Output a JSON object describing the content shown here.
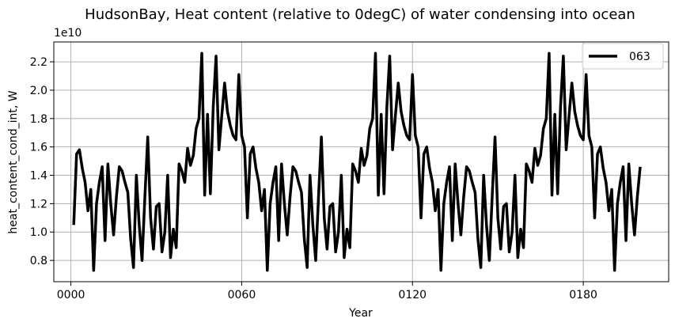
{
  "chart_data": {
    "type": "line",
    "title": "HudsonBay, Heat content (relative to 0degC) of water condensing into ocean",
    "xlabel": "Year",
    "ylabel": "heat_content_cond_int, W",
    "y_offset_label": "1e10",
    "y_scale_factor": 10000000000.0,
    "xlim": [
      -6,
      210
    ],
    "ylim": [
      6500000000.0,
      23400000000.0
    ],
    "x_ticks": [
      0,
      60,
      120,
      180
    ],
    "x_tick_labels": [
      "0000",
      "0060",
      "0120",
      "0180"
    ],
    "y_ticks": [
      8000000000.0,
      10000000000.0,
      12000000000.0,
      14000000000.0,
      16000000000.0,
      18000000000.0,
      20000000000.0,
      22000000000.0
    ],
    "y_tick_labels": [
      "0.8",
      "1.0",
      "1.2",
      "1.4",
      "1.6",
      "1.8",
      "2.0",
      "2.2"
    ],
    "grid": true,
    "legend_position": "top-right",
    "series": [
      {
        "name": "063",
        "color": "#000000",
        "x": [
          1,
          2,
          3,
          4,
          5,
          6,
          7,
          8,
          9,
          10,
          11,
          12,
          13,
          14,
          15,
          16,
          17,
          18,
          19,
          20,
          21,
          22,
          23,
          24,
          25,
          26,
          27,
          28,
          29,
          30,
          31,
          32,
          33,
          34,
          35,
          36,
          37,
          38,
          39,
          40,
          41,
          42,
          43,
          44,
          45,
          46,
          47,
          48,
          49,
          50,
          51,
          52,
          53,
          54,
          55,
          56,
          57,
          58,
          59,
          60,
          61,
          62,
          63,
          64,
          65,
          66,
          67,
          68,
          69,
          70,
          71,
          72,
          73,
          74,
          75,
          76,
          77,
          78,
          79,
          80,
          81,
          82,
          83,
          84,
          85,
          86,
          87,
          88,
          89,
          90,
          91,
          92,
          93,
          94,
          95,
          96,
          97,
          98,
          99,
          100,
          101,
          102,
          103,
          104,
          105,
          106,
          107,
          108,
          109,
          110,
          111,
          112,
          113,
          114,
          115,
          116,
          117,
          118,
          119,
          120,
          121,
          122,
          123,
          124,
          125,
          126,
          127,
          128,
          129,
          130,
          131,
          132,
          133,
          134,
          135,
          136,
          137,
          138,
          139,
          140,
          141,
          142,
          143,
          144,
          145,
          146,
          147,
          148,
          149,
          150,
          151,
          152,
          153,
          154,
          155,
          156,
          157,
          158,
          159,
          160,
          161,
          162,
          163,
          164,
          165,
          166,
          167,
          168,
          169,
          170,
          171,
          172,
          173,
          174,
          175,
          176,
          177,
          178,
          179,
          180,
          181,
          182,
          183,
          184,
          185,
          186,
          187,
          188,
          189,
          190,
          191,
          192,
          193,
          194,
          195,
          196,
          197,
          198,
          199,
          200
        ],
        "values": [
          10500000000,
          15500000000,
          15800000000,
          14500000000,
          13500000000,
          11500000000,
          13000000000,
          7300000000,
          12000000000,
          13500000000,
          14600000000,
          9400000000,
          14800000000,
          12000000000,
          9800000000,
          12500000000,
          14600000000,
          14300000000,
          13500000000,
          12800000000,
          9500000000,
          7500000000,
          14000000000,
          10500000000,
          8000000000,
          12500000000,
          16700000000,
          11000000000,
          8800000000,
          11800000000,
          12000000000,
          8600000000,
          10000000000,
          14000000000,
          8200000000,
          10200000000,
          8900000000,
          14800000000,
          14300000000,
          13500000000,
          15900000000,
          14700000000,
          15400000000,
          17300000000,
          18000000000,
          22600000000,
          12600000000,
          18300000000,
          12700000000,
          18800000000,
          22400000000,
          15800000000,
          18200000000,
          20500000000,
          18500000000,
          17500000000,
          16800000000,
          16500000000,
          21100000000,
          16800000000,
          16000000000,
          11000000000,
          15500000000,
          16000000000,
          14500000000,
          13500000000,
          11500000000,
          13000000000,
          7300000000,
          12000000000,
          13500000000,
          14600000000,
          9400000000,
          14800000000,
          12000000000,
          9800000000,
          12500000000,
          14600000000,
          14300000000,
          13500000000,
          12800000000,
          9500000000,
          7500000000,
          14000000000,
          10500000000,
          8000000000,
          12500000000,
          16700000000,
          11000000000,
          8800000000,
          11800000000,
          12000000000,
          8600000000,
          10000000000,
          14000000000,
          8200000000,
          10200000000,
          8900000000,
          14800000000,
          14300000000,
          13500000000,
          15900000000,
          14700000000,
          15400000000,
          17300000000,
          18000000000,
          22600000000,
          12600000000,
          18300000000,
          12700000000,
          18800000000,
          22400000000,
          15800000000,
          18200000000,
          20500000000,
          18500000000,
          17500000000,
          16800000000,
          16500000000,
          21100000000,
          16800000000,
          16000000000,
          11000000000,
          15500000000,
          16000000000,
          14500000000,
          13500000000,
          11500000000,
          13000000000,
          7300000000,
          12000000000,
          13500000000,
          14600000000,
          9400000000,
          14800000000,
          12000000000,
          9800000000,
          12500000000,
          14600000000,
          14300000000,
          13500000000,
          12800000000,
          9500000000,
          7500000000,
          14000000000,
          10500000000,
          8000000000,
          12500000000,
          16700000000,
          11000000000,
          8800000000,
          11800000000,
          12000000000,
          8600000000,
          10000000000,
          14000000000,
          8200000000,
          10200000000,
          8900000000,
          14800000000,
          14300000000,
          13500000000,
          15900000000,
          14700000000,
          15400000000,
          17300000000,
          18000000000,
          22600000000,
          12600000000,
          18300000000,
          12700000000,
          18800000000,
          22400000000,
          15800000000,
          18200000000,
          20500000000,
          18500000000,
          17500000000,
          16800000000,
          16500000000,
          21100000000,
          16800000000,
          16000000000,
          11000000000,
          15500000000,
          16000000000,
          14500000000,
          13500000000,
          11500000000,
          13000000000,
          7300000000,
          12000000000,
          13500000000,
          14600000000,
          9400000000,
          14800000000,
          12000000000,
          9800000000,
          12500000000,
          14600000000
        ]
      }
    ]
  }
}
